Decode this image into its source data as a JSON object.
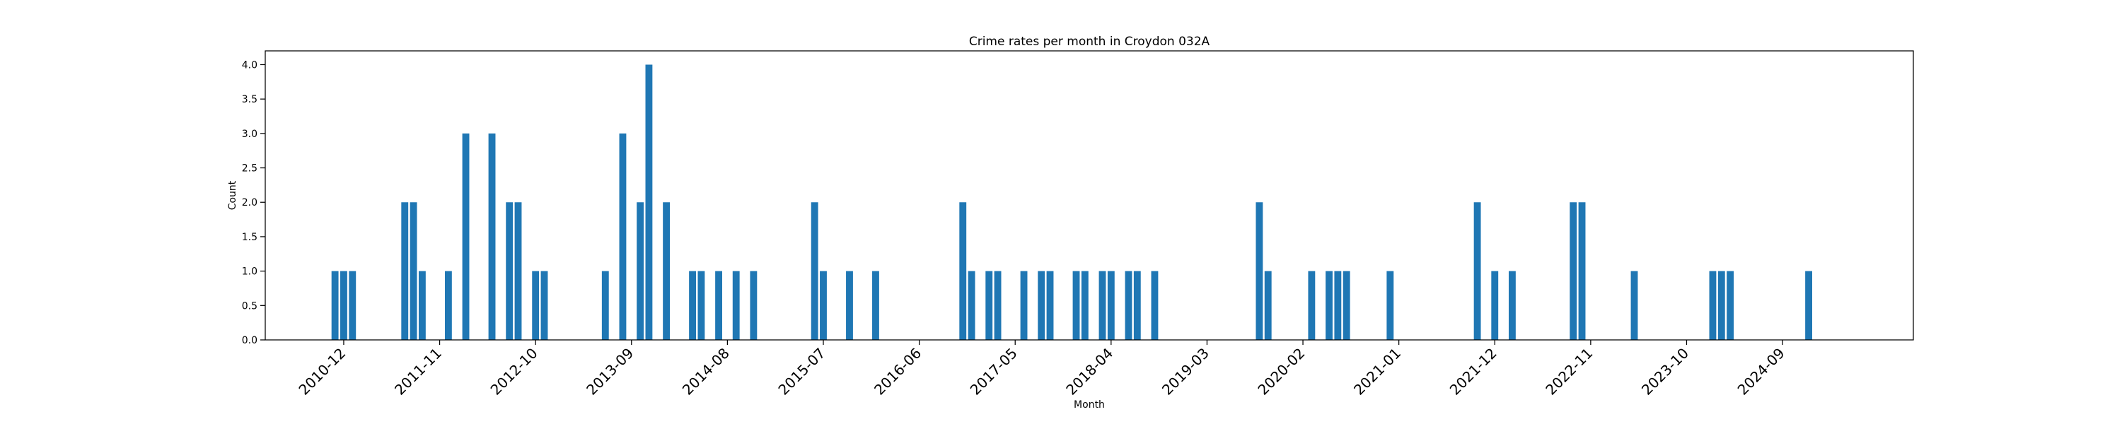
{
  "chart_data": {
    "type": "bar",
    "title": "Crime rates per month in Croydon 032A",
    "xlabel": "Month",
    "ylabel": "Count",
    "ylim": [
      0,
      4.2
    ],
    "yticks": [
      0.0,
      0.5,
      1.0,
      1.5,
      2.0,
      2.5,
      3.0,
      3.5,
      4.0
    ],
    "ytick_labels": [
      "0.0",
      "0.5",
      "1.0",
      "1.5",
      "2.0",
      "2.5",
      "3.0",
      "3.5",
      "4.0"
    ],
    "xlim": [
      "2010-03",
      "2025-12"
    ],
    "xticks": [
      "2010-12",
      "2011-11",
      "2012-10",
      "2013-09",
      "2014-08",
      "2015-07",
      "2016-06",
      "2017-05",
      "2018-04",
      "2019-03",
      "2020-02",
      "2021-01",
      "2021-12",
      "2022-11",
      "2023-10",
      "2024-09"
    ],
    "grid": false,
    "bar_color": "#1f77b4",
    "x": [
      "2010-11",
      "2010-12",
      "2011-01",
      "2011-07",
      "2011-08",
      "2011-09",
      "2011-12",
      "2012-02",
      "2012-05",
      "2012-07",
      "2012-08",
      "2012-10",
      "2012-11",
      "2013-06",
      "2013-08",
      "2013-10",
      "2013-11",
      "2014-01",
      "2014-04",
      "2014-05",
      "2014-07",
      "2014-09",
      "2014-11",
      "2015-06",
      "2015-07",
      "2015-10",
      "2016-01",
      "2016-11",
      "2016-12",
      "2017-02",
      "2017-03",
      "2017-06",
      "2017-08",
      "2017-09",
      "2017-12",
      "2018-01",
      "2018-03",
      "2018-04",
      "2018-06",
      "2018-07",
      "2018-09",
      "2019-09",
      "2019-10",
      "2020-03",
      "2020-05",
      "2020-06",
      "2020-07",
      "2020-12",
      "2021-10",
      "2021-12",
      "2022-02",
      "2022-09",
      "2022-10",
      "2023-04",
      "2024-01",
      "2024-02",
      "2024-03",
      "2024-12"
    ],
    "values": [
      1,
      1,
      1,
      2,
      2,
      1,
      1,
      3,
      3,
      2,
      2,
      1,
      1,
      1,
      3,
      2,
      4,
      2,
      1,
      1,
      1,
      1,
      1,
      2,
      1,
      1,
      1,
      2,
      1,
      1,
      1,
      1,
      1,
      1,
      1,
      1,
      1,
      1,
      1,
      1,
      1,
      2,
      1,
      1,
      1,
      1,
      1,
      1,
      2,
      1,
      1,
      2,
      2,
      1,
      1,
      1,
      1,
      1
    ]
  }
}
